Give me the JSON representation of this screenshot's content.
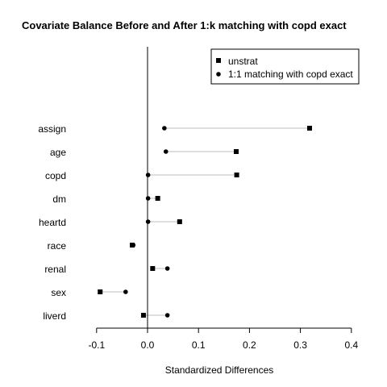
{
  "chart_data": {
    "type": "scatter",
    "title": "Covariate Balance Before and After 1:k matching with copd exact",
    "xlabel": "Standardized Differences",
    "ylabel": "",
    "xlim": [
      -0.13,
      0.4
    ],
    "xticks": [
      "-0.1",
      "0.0",
      "0.1",
      "0.2",
      "0.3",
      "0.4"
    ],
    "xtick_values": [
      -0.1,
      0.0,
      0.1,
      0.2,
      0.3,
      0.4
    ],
    "reference_line_x": 0,
    "grid": false,
    "legend_position": "top-right",
    "categories": [
      "assign",
      "age",
      "copd",
      "dm",
      "heartd",
      "race",
      "renal",
      "sex",
      "liverd"
    ],
    "series": [
      {
        "name": "unstrat",
        "marker": "square",
        "values": [
          0.318,
          0.174,
          0.175,
          0.02,
          0.063,
          -0.03,
          0.01,
          -0.093,
          -0.008
        ]
      },
      {
        "name": "1:1 matching with copd exact",
        "marker": "circle",
        "values": [
          0.033,
          0.036,
          0.001,
          0.001,
          0.001,
          -0.028,
          0.039,
          -0.043,
          0.039
        ]
      }
    ]
  }
}
